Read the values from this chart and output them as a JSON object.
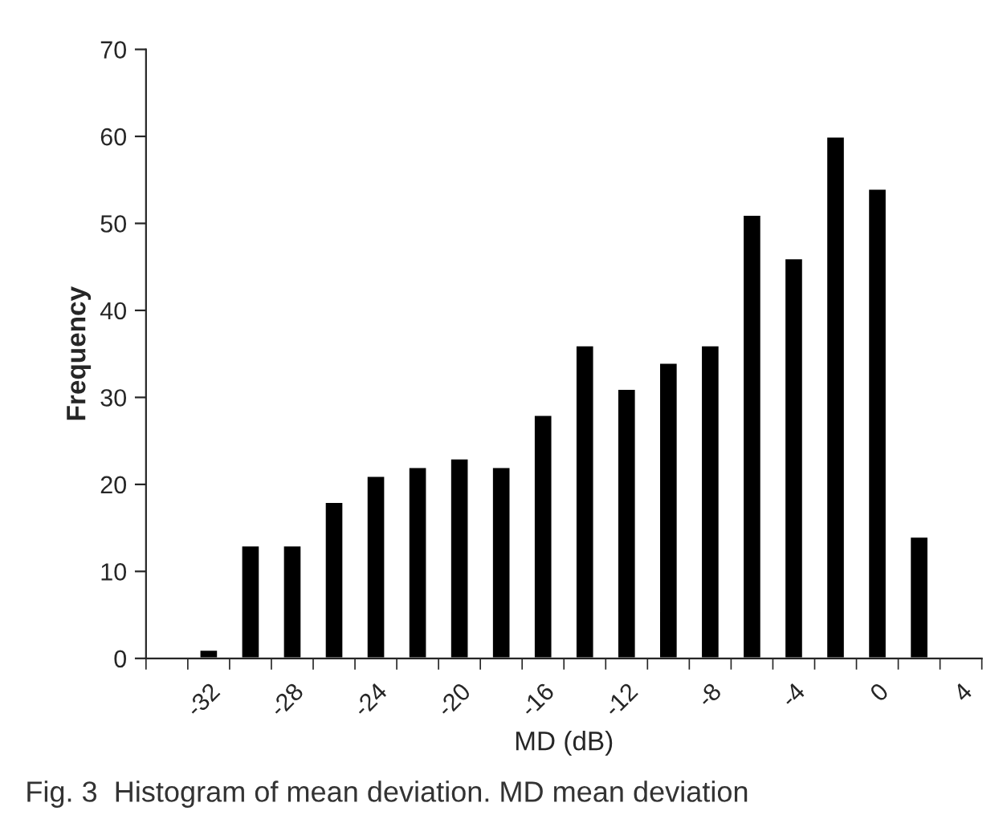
{
  "chart_data": {
    "type": "bar",
    "xlabel": "MD (dB)",
    "ylabel": "Frequency",
    "categories": [
      null,
      "-32",
      null,
      "-28",
      null,
      "-24",
      null,
      "-20",
      null,
      "-16",
      null,
      "-12",
      null,
      "-8",
      null,
      "-4",
      null,
      "0",
      null,
      "4"
    ],
    "values": [
      null,
      1,
      13,
      13,
      18,
      21,
      22,
      23,
      22,
      28,
      36,
      31,
      34,
      36,
      51,
      46,
      60,
      54,
      14,
      null
    ],
    "color": "#000000",
    "ylim": [
      0,
      70
    ],
    "yticks": [
      0,
      10,
      20,
      30,
      40,
      50,
      60,
      70
    ],
    "grid": false,
    "annotations": [
      "Fig. 3  Histogram of mean deviation. MD mean deviation"
    ]
  }
}
